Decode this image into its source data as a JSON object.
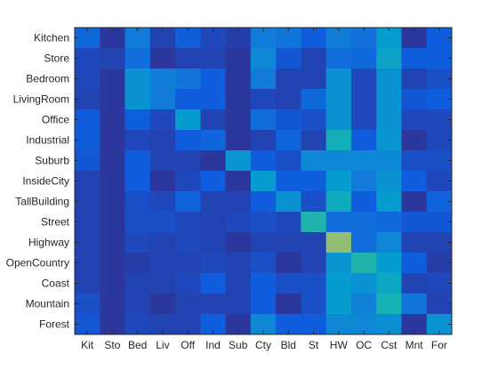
{
  "chart_data": {
    "type": "heatmap",
    "title": "",
    "xlabel": "",
    "ylabel": "",
    "row_labels": [
      "Kitchen",
      "Store",
      "Bedroom",
      "LivingRoom",
      "Office",
      "Industrial",
      "Suburb",
      "InsideCity",
      "TallBuilding",
      "Street",
      "Highway",
      "OpenCountry",
      "Coast",
      "Mountain",
      "Forest"
    ],
    "col_labels": [
      "Kit",
      "Sto",
      "Bed",
      "Liv",
      "Off",
      "Ind",
      "Sub",
      "Cty",
      "Bld",
      "St",
      "HW",
      "OC",
      "Cst",
      "Mnt",
      "For"
    ],
    "colormap": "parula",
    "value_range": [
      0,
      1
    ],
    "grid": false,
    "values": [
      [
        0.28,
        0.05,
        0.38,
        0.1,
        0.22,
        0.12,
        0.08,
        0.38,
        0.36,
        0.2,
        0.4,
        0.32,
        0.55,
        0.05,
        0.2
      ],
      [
        0.12,
        0.1,
        0.3,
        0.05,
        0.1,
        0.1,
        0.05,
        0.45,
        0.18,
        0.1,
        0.3,
        0.28,
        0.6,
        0.2,
        0.22
      ],
      [
        0.12,
        0.05,
        0.5,
        0.4,
        0.35,
        0.2,
        0.05,
        0.38,
        0.1,
        0.1,
        0.5,
        0.12,
        0.5,
        0.1,
        0.15
      ],
      [
        0.1,
        0.05,
        0.5,
        0.38,
        0.2,
        0.2,
        0.05,
        0.12,
        0.1,
        0.28,
        0.5,
        0.12,
        0.5,
        0.18,
        0.2
      ],
      [
        0.2,
        0.05,
        0.22,
        0.12,
        0.55,
        0.1,
        0.05,
        0.3,
        0.18,
        0.15,
        0.5,
        0.12,
        0.5,
        0.12,
        0.12
      ],
      [
        0.22,
        0.05,
        0.12,
        0.1,
        0.2,
        0.25,
        0.05,
        0.1,
        0.25,
        0.1,
        0.68,
        0.2,
        0.52,
        0.05,
        0.12
      ],
      [
        0.18,
        0.05,
        0.2,
        0.1,
        0.1,
        0.05,
        0.52,
        0.2,
        0.15,
        0.45,
        0.45,
        0.45,
        0.45,
        0.15,
        0.15
      ],
      [
        0.1,
        0.05,
        0.2,
        0.05,
        0.12,
        0.2,
        0.05,
        0.55,
        0.22,
        0.22,
        0.55,
        0.38,
        0.5,
        0.2,
        0.12
      ],
      [
        0.1,
        0.05,
        0.15,
        0.12,
        0.25,
        0.1,
        0.1,
        0.2,
        0.5,
        0.15,
        0.65,
        0.2,
        0.55,
        0.05,
        0.25
      ],
      [
        0.1,
        0.05,
        0.15,
        0.15,
        0.12,
        0.1,
        0.12,
        0.15,
        0.12,
        0.72,
        0.3,
        0.3,
        0.28,
        0.18,
        0.18
      ],
      [
        0.1,
        0.05,
        0.12,
        0.1,
        0.12,
        0.1,
        0.05,
        0.1,
        0.1,
        0.1,
        0.88,
        0.3,
        0.45,
        0.1,
        0.1
      ],
      [
        0.1,
        0.05,
        0.08,
        0.1,
        0.1,
        0.12,
        0.1,
        0.15,
        0.05,
        0.1,
        0.52,
        0.72,
        0.55,
        0.22,
        0.08
      ],
      [
        0.1,
        0.05,
        0.1,
        0.1,
        0.12,
        0.2,
        0.1,
        0.2,
        0.15,
        0.15,
        0.55,
        0.5,
        0.62,
        0.1,
        0.12
      ],
      [
        0.15,
        0.05,
        0.1,
        0.05,
        0.1,
        0.1,
        0.1,
        0.2,
        0.05,
        0.15,
        0.55,
        0.42,
        0.7,
        0.35,
        0.1
      ],
      [
        0.18,
        0.05,
        0.12,
        0.1,
        0.1,
        0.22,
        0.05,
        0.45,
        0.2,
        0.2,
        0.45,
        0.45,
        0.48,
        0.05,
        0.5
      ]
    ]
  }
}
